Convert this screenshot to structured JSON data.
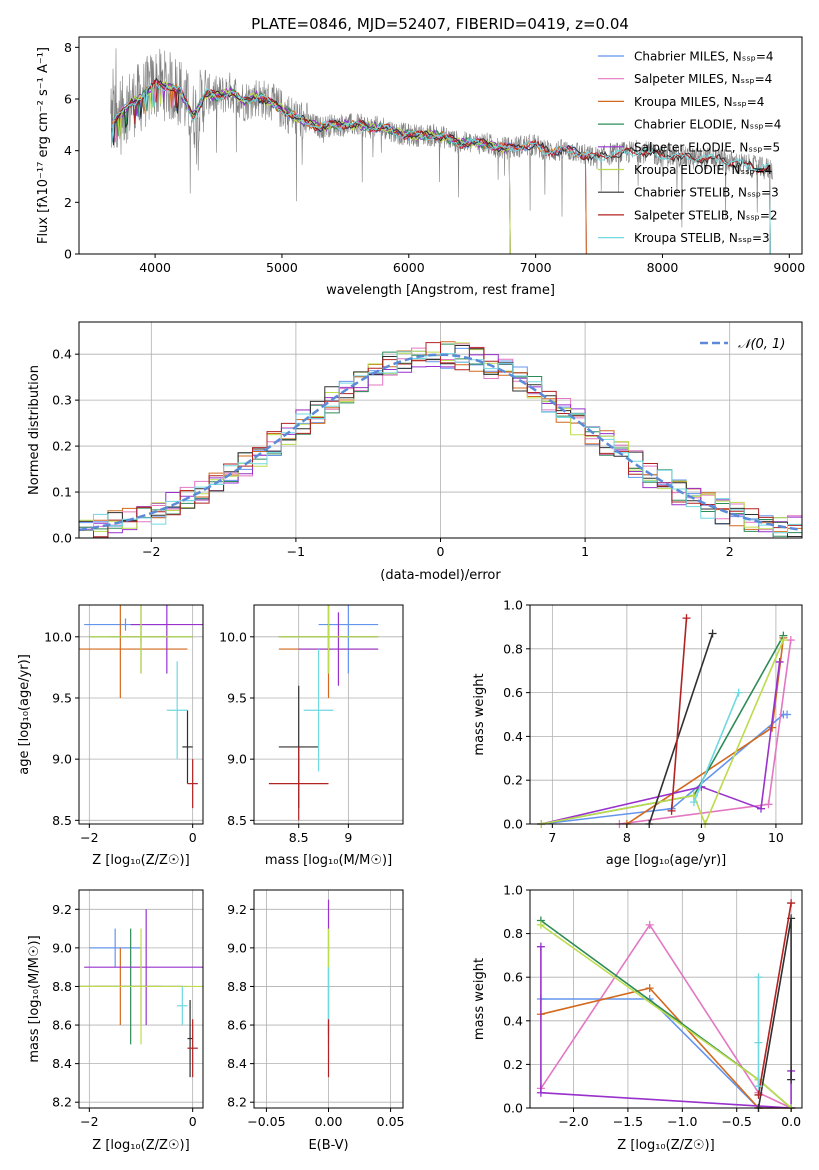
{
  "chart_data": [
    {
      "id": "spectrum",
      "type": "line",
      "title": "PLATE=0846, MJD=52407, FIBERID=0419, z=0.04",
      "xlabel": "wavelength [Angstrom, rest frame]",
      "ylabel": "Flux [fλ10⁻¹⁷ erg cm⁻² s⁻¹ A⁻¹]",
      "xlim": [
        3400,
        9100
      ],
      "ylim": [
        0,
        8.4
      ],
      "xticks": [
        4000,
        5000,
        6000,
        7000,
        8000,
        9000
      ],
      "yticks": [
        0,
        2,
        4,
        6,
        8
      ],
      "grid": false,
      "legend_position": "top-right",
      "observed_color": "#808080",
      "observed_points": [
        [
          3650,
          5.0
        ],
        [
          3700,
          5.3
        ],
        [
          3800,
          5.8
        ],
        [
          3900,
          6.1
        ],
        [
          4000,
          6.6
        ],
        [
          4100,
          6.5
        ],
        [
          4200,
          6.3
        ],
        [
          4300,
          5.3
        ],
        [
          4400,
          6.2
        ],
        [
          4500,
          6.1
        ],
        [
          4600,
          6.3
        ],
        [
          4700,
          5.9
        ],
        [
          4800,
          6.1
        ],
        [
          4900,
          5.9
        ],
        [
          5000,
          5.6
        ],
        [
          5100,
          5.3
        ],
        [
          5200,
          5.1
        ],
        [
          5300,
          4.9
        ],
        [
          5400,
          5.0
        ],
        [
          5500,
          5.0
        ],
        [
          5600,
          5.0
        ],
        [
          5700,
          4.9
        ],
        [
          5800,
          4.9
        ],
        [
          5900,
          4.7
        ],
        [
          6000,
          4.6
        ],
        [
          6100,
          4.6
        ],
        [
          6200,
          4.6
        ],
        [
          6300,
          4.5
        ],
        [
          6400,
          4.3
        ],
        [
          6500,
          4.3
        ],
        [
          6600,
          4.3
        ],
        [
          6700,
          4.1
        ],
        [
          6800,
          4.1
        ],
        [
          6900,
          4.2
        ],
        [
          7000,
          4.2
        ],
        [
          7100,
          4.0
        ],
        [
          7200,
          4.0
        ],
        [
          7300,
          4.0
        ],
        [
          7400,
          3.8
        ],
        [
          7500,
          3.7
        ],
        [
          7600,
          3.9
        ],
        [
          7700,
          3.9
        ],
        [
          7800,
          4.0
        ],
        [
          7900,
          3.9
        ],
        [
          8000,
          3.8
        ],
        [
          8100,
          3.8
        ],
        [
          8200,
          3.7
        ],
        [
          8300,
          3.7
        ],
        [
          8400,
          3.7
        ],
        [
          8500,
          3.6
        ],
        [
          8600,
          3.5
        ],
        [
          8700,
          3.4
        ],
        [
          8800,
          3.3
        ]
      ],
      "series": [
        {
          "name": "Chabrier MILES, N_SSP=4",
          "color": "#6495ed",
          "x_end": 7400
        },
        {
          "name": "Salpeter MILES, N_SSP=4",
          "color": "#e377c2",
          "x_end": 7400
        },
        {
          "name": "Kroupa MILES, N_SSP=4",
          "color": "#d2691e",
          "x_end": 7400
        },
        {
          "name": "Chabrier ELODIE, N_SSP=4",
          "color": "#2e8b57",
          "x_end": 6800
        },
        {
          "name": "Salpeter ELODIE, N_SSP=5",
          "color": "#9932cc",
          "x_end": 6800
        },
        {
          "name": "Kroupa ELODIE, N_SSP=4",
          "color": "#bcdc4e",
          "x_end": 6800
        },
        {
          "name": "Chabrier STELIB, N_SSP=3",
          "color": "#303030",
          "x_end": 8850
        },
        {
          "name": "Salpeter STELIB, N_SSP=2",
          "color": "#b22222",
          "x_end": 8850
        },
        {
          "name": "Kroupa STELIB, N_SSP=3",
          "color": "#70d8e0",
          "x_end": 8850
        }
      ]
    },
    {
      "id": "residuals",
      "type": "line",
      "xlabel": "(data-model)/error",
      "ylabel": "Normed distribution",
      "xlim": [
        -2.5,
        2.5
      ],
      "ylim": [
        0,
        0.47
      ],
      "xticks": [
        -2,
        -1,
        0,
        1,
        2
      ],
      "yticks": [
        0.0,
        0.1,
        0.2,
        0.3,
        0.4
      ],
      "grid": true,
      "legend_position": "top-right",
      "legend": "𝒩(0, 1)",
      "gaussian_color": "#5b8bd8",
      "bin_width": 0.1
    },
    {
      "id": "age-vs-Z",
      "type": "scatter",
      "xlabel": "Z [log₁₀(Z/Z☉)]",
      "ylabel": "age  [log₁₀(age/yr)]",
      "xlim": [
        -2.2,
        0.2
      ],
      "ylim": [
        8.47,
        10.26
      ],
      "xticks": [
        -2,
        0
      ],
      "yticks": [
        8.5,
        9.0,
        9.5,
        10.0
      ],
      "grid": true,
      "points": [
        {
          "color": "#6495ed",
          "x": -1.3,
          "y": 10.1,
          "xerr": 0.8,
          "yerr": 0.05
        },
        {
          "color": "#e377c2",
          "x": -1.0,
          "y": 10.0,
          "xerr": 0.6,
          "yerr": 0.05
        },
        {
          "color": "#d2691e",
          "x": -1.4,
          "y": 9.9,
          "xerr": 1.3,
          "yerr": 0.4
        },
        {
          "color": "#2e8b57",
          "x": -1.0,
          "y": 10.0,
          "xerr": 1.0,
          "yerr": 0.3
        },
        {
          "color": "#9932cc",
          "x": -0.5,
          "y": 10.1,
          "xerr": 0.7,
          "yerr": 0.4
        },
        {
          "color": "#bcdc4e",
          "x": -1.0,
          "y": 10.0,
          "xerr": 1.0,
          "yerr": 0.3
        },
        {
          "color": "#303030",
          "x": -0.1,
          "y": 9.1,
          "xerr": 0.1,
          "yerr": 0.3
        },
        {
          "color": "#b22222",
          "x": 0.0,
          "y": 8.8,
          "xerr": 0.1,
          "yerr": 0.2
        },
        {
          "color": "#70d8e0",
          "x": -0.3,
          "y": 9.4,
          "xerr": 0.2,
          "yerr": 0.4
        }
      ]
    },
    {
      "id": "age-vs-mass",
      "type": "scatter",
      "xlabel": "mass [log₁₀(M/M☉)]",
      "ylabel": "",
      "xlim": [
        8.05,
        9.55
      ],
      "ylim": [
        8.47,
        10.26
      ],
      "xticks": [
        8.5,
        9.0
      ],
      "yticks": [
        8.5,
        9.0,
        9.5,
        10.0
      ],
      "grid": true,
      "points": [
        {
          "color": "#6495ed",
          "x": 9.0,
          "y": 10.1,
          "xerr": 0.3,
          "yerr": 0.4
        },
        {
          "color": "#e377c2",
          "x": 8.8,
          "y": 10.0,
          "xerr": 0.5,
          "yerr": 0.1
        },
        {
          "color": "#d2691e",
          "x": 8.8,
          "y": 9.9,
          "xerr": 0.5,
          "yerr": 0.4
        },
        {
          "color": "#2e8b57",
          "x": 8.8,
          "y": 10.0,
          "xerr": 0.5,
          "yerr": 0.3
        },
        {
          "color": "#9932cc",
          "x": 8.9,
          "y": 9.9,
          "xerr": 0.4,
          "yerr": 0.3
        },
        {
          "color": "#bcdc4e",
          "x": 8.8,
          "y": 10.0,
          "xerr": 0.5,
          "yerr": 0.3
        },
        {
          "color": "#303030",
          "x": 8.5,
          "y": 9.1,
          "xerr": 0.2,
          "yerr": 0.5
        },
        {
          "color": "#b22222",
          "x": 8.5,
          "y": 8.8,
          "xerr": 0.3,
          "yerr": 0.3
        },
        {
          "color": "#70d8e0",
          "x": 8.7,
          "y": 9.4,
          "xerr": 0.15,
          "yerr": 0.5
        }
      ]
    },
    {
      "id": "weight-vs-age",
      "type": "line",
      "xlabel": "age  [log₁₀(age/yr)]",
      "ylabel": "mass weight",
      "xlim": [
        6.7,
        10.35
      ],
      "ylim": [
        0,
        1.0
      ],
      "xticks": [
        7,
        8,
        9,
        10
      ],
      "yticks": [
        0.0,
        0.2,
        0.4,
        0.6,
        0.8,
        1.0
      ],
      "grid": true,
      "series": [
        {
          "color": "#6495ed",
          "points": [
            [
              6.85,
              0.0
            ],
            [
              8.6,
              0.07
            ],
            [
              10.1,
              0.5
            ],
            [
              10.15,
              0.5
            ]
          ]
        },
        {
          "color": "#e377c2",
          "points": [
            [
              7.9,
              0.0
            ],
            [
              9.9,
              0.09
            ],
            [
              10.2,
              0.84
            ]
          ]
        },
        {
          "color": "#d2691e",
          "points": [
            [
              8.0,
              0.0
            ],
            [
              9.95,
              0.44
            ],
            [
              10.1,
              0.85
            ]
          ]
        },
        {
          "color": "#2e8b57",
          "points": [
            [
              6.85,
              0.0
            ],
            [
              8.9,
              0.13
            ],
            [
              10.1,
              0.86
            ]
          ]
        },
        {
          "color": "#9932cc",
          "points": [
            [
              6.85,
              0.0
            ],
            [
              9.0,
              0.17
            ],
            [
              9.8,
              0.07
            ],
            [
              10.05,
              0.74
            ]
          ]
        },
        {
          "color": "#bcdc4e",
          "points": [
            [
              6.85,
              0.0
            ],
            [
              8.9,
              0.13
            ],
            [
              9.05,
              0.0
            ],
            [
              10.1,
              0.84
            ]
          ]
        },
        {
          "color": "#303030",
          "points": [
            [
              8.3,
              0.0
            ],
            [
              9.15,
              0.87
            ]
          ]
        },
        {
          "color": "#b22222",
          "points": [
            [
              8.6,
              0.06
            ],
            [
              8.8,
              0.94
            ]
          ]
        },
        {
          "color": "#70d8e0",
          "points": [
            [
              8.9,
              0.1
            ],
            [
              9.5,
              0.6
            ]
          ]
        }
      ]
    },
    {
      "id": "mass-vs-Z",
      "type": "scatter",
      "xlabel": "Z [log₁₀(Z/Z☉)]",
      "ylabel": "mass [log₁₀(M/M☉)]",
      "xlim": [
        -2.2,
        0.2
      ],
      "ylim": [
        8.17,
        9.3
      ],
      "xticks": [
        -2,
        0
      ],
      "yticks": [
        8.2,
        8.4,
        8.6,
        8.8,
        9.0,
        9.2
      ],
      "grid": true,
      "points": [
        {
          "color": "#6495ed",
          "x": -1.5,
          "y": 9.0,
          "xerr": 0.5,
          "yerr": 0.1
        },
        {
          "color": "#e377c2",
          "x": -1.0,
          "y": 8.8,
          "xerr": 0.9,
          "yerr": 0.2
        },
        {
          "color": "#d2691e",
          "x": -1.4,
          "y": 8.8,
          "xerr": 0.8,
          "yerr": 0.2
        },
        {
          "color": "#2e8b57",
          "x": -1.2,
          "y": 8.8,
          "xerr": 1.0,
          "yerr": 0.3
        },
        {
          "color": "#9932cc",
          "x": -0.9,
          "y": 8.9,
          "xerr": 1.2,
          "yerr": 0.3
        },
        {
          "color": "#bcdc4e",
          "x": -1.0,
          "y": 8.8,
          "xerr": 1.2,
          "yerr": 0.3
        },
        {
          "color": "#303030",
          "x": -0.05,
          "y": 8.53,
          "xerr": 0.05,
          "yerr": 0.2
        },
        {
          "color": "#b22222",
          "x": 0.0,
          "y": 8.48,
          "xerr": 0.1,
          "yerr": 0.15
        },
        {
          "color": "#70d8e0",
          "x": -0.2,
          "y": 8.7,
          "xerr": 0.1,
          "yerr": 0.1
        }
      ]
    },
    {
      "id": "mass-vs-ebv",
      "type": "scatter",
      "xlabel": "E(B-V)",
      "ylabel": "",
      "xlim": [
        -0.06,
        0.06
      ],
      "ylim": [
        8.17,
        9.3
      ],
      "xticks": [
        -0.05,
        0.0,
        0.05
      ],
      "xticklabels": [
        "−0.05",
        "0.00",
        "0.05"
      ],
      "yticks": [
        8.2,
        8.4,
        8.6,
        8.8,
        9.0,
        9.2
      ],
      "grid": true,
      "points": [
        {
          "color": "#9932cc",
          "x": 0.0,
          "y": 8.9,
          "xerr": 0.0,
          "yerr": 0.35
        },
        {
          "color": "#bcdc4e",
          "x": 0.0,
          "y": 8.75,
          "xerr": 0.0,
          "yerr": 0.35
        },
        {
          "color": "#70d8e0",
          "x": 0.0,
          "y": 8.7,
          "xerr": 0.0,
          "yerr": 0.2
        },
        {
          "color": "#b22222",
          "x": 0.0,
          "y": 8.48,
          "xerr": 0.0,
          "yerr": 0.15
        }
      ]
    },
    {
      "id": "weight-vs-Z",
      "type": "line",
      "xlabel": "Z [log₁₀(Z/Z☉)]",
      "ylabel": "mass weight",
      "xlim": [
        -2.4,
        0.1
      ],
      "ylim": [
        0,
        1.0
      ],
      "xticks": [
        -2.0,
        -1.5,
        -1.0,
        -0.5,
        0.0
      ],
      "xticklabels": [
        "−2.0",
        "−1.5",
        "−1.0",
        "−0.5",
        "0.0"
      ],
      "yticks": [
        0.0,
        0.2,
        0.4,
        0.6,
        0.8,
        1.0
      ],
      "grid": true,
      "series": [
        {
          "color": "#6495ed",
          "points": [
            [
              -2.3,
              0.5
            ],
            [
              -1.3,
              0.5
            ],
            [
              -0.3,
              0.0
            ],
            [
              0.0,
              0.0
            ]
          ]
        },
        {
          "color": "#e377c2",
          "points": [
            [
              -2.3,
              0.09
            ],
            [
              -1.3,
              0.84
            ],
            [
              -0.3,
              0.07
            ],
            [
              0.0,
              0.0
            ]
          ]
        },
        {
          "color": "#d2691e",
          "points": [
            [
              -2.3,
              0.43
            ],
            [
              -1.3,
              0.55
            ],
            [
              -0.3,
              0.0
            ],
            [
              0.0,
              0.0
            ]
          ]
        },
        {
          "color": "#2e8b57",
          "points": [
            [
              -2.3,
              0.86
            ],
            [
              -0.3,
              0.13
            ],
            [
              0.0,
              0.0
            ]
          ]
        },
        {
          "color": "#9932cc",
          "points": [
            [
              -2.3,
              0.74
            ],
            [
              -2.3,
              0.07
            ],
            [
              0.0,
              0.0
            ],
            [
              0.0,
              0.17
            ]
          ]
        },
        {
          "color": "#bcdc4e",
          "points": [
            [
              -2.3,
              0.84
            ],
            [
              -0.3,
              0.13
            ],
            [
              0.0,
              0.0
            ]
          ]
        },
        {
          "color": "#303030",
          "points": [
            [
              -0.3,
              0.0
            ],
            [
              0.0,
              0.87
            ],
            [
              0.0,
              0.13
            ]
          ]
        },
        {
          "color": "#b22222",
          "points": [
            [
              -0.3,
              0.06
            ],
            [
              0.0,
              0.94
            ]
          ]
        },
        {
          "color": "#70d8e0",
          "points": [
            [
              -0.3,
              0.6
            ],
            [
              -0.3,
              0.3
            ],
            [
              -0.3,
              0.1
            ]
          ]
        }
      ]
    }
  ]
}
